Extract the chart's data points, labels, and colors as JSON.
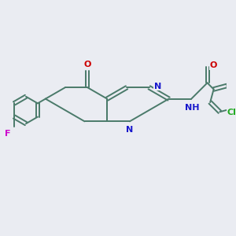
{
  "bg_color": "#eaecf2",
  "bond_color": "#4a7a6a",
  "n_color": "#1818cc",
  "o_color": "#cc0000",
  "f_color": "#cc00cc",
  "cl_color": "#22aa22",
  "lw": 1.4,
  "fs": 8.0,
  "xlim": [
    0,
    10
  ],
  "ylim": [
    0,
    10
  ]
}
